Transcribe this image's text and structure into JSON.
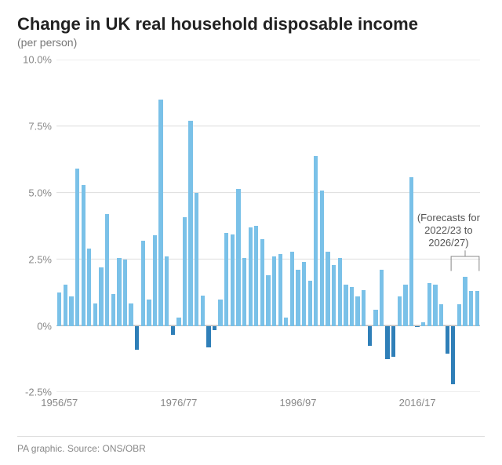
{
  "title": "Change in UK real household disposable income",
  "subtitle": "(per person)",
  "footer": "PA graphic. Source: ONS/OBR",
  "chart": {
    "type": "bar",
    "background_color": "#ffffff",
    "grid_color": "#dddddd",
    "zero_axis_color": "#bbbbbb",
    "y": {
      "min": -2.5,
      "max": 10.0,
      "tick_step": 2.5,
      "suffix": "%",
      "decimals": 1,
      "label_color": "#888888",
      "label_fontsize": 13
    },
    "x": {
      "tick_labels": [
        "1956/57",
        "1976/77",
        "1996/97",
        "2016/17"
      ],
      "tick_indices": [
        0,
        20,
        40,
        60
      ],
      "label_color": "#888888",
      "label_fontsize": 13
    },
    "title_fontsize": 22,
    "title_color": "#222222",
    "subtitle_fontsize": 14,
    "subtitle_color": "#777777",
    "colors": {
      "positive": "#7ac1e8",
      "negative": "#2f7fb8"
    },
    "bar_width_ratio": 0.7,
    "series_start_year": 1956,
    "values": [
      1.25,
      1.55,
      1.1,
      5.9,
      5.3,
      2.9,
      0.85,
      2.2,
      4.2,
      1.2,
      2.55,
      2.5,
      0.85,
      -0.9,
      3.2,
      1.0,
      3.4,
      8.5,
      2.6,
      -0.35,
      0.3,
      4.1,
      7.7,
      5.0,
      1.15,
      -0.8,
      -0.15,
      1.0,
      3.5,
      3.45,
      5.15,
      2.55,
      3.7,
      3.75,
      3.25,
      1.9,
      2.6,
      2.7,
      0.3,
      2.8,
      2.1,
      2.4,
      1.7,
      6.4,
      5.1,
      2.8,
      2.3,
      2.55,
      1.55,
      1.45,
      1.1,
      1.35,
      -0.75,
      0.6,
      2.1,
      -1.25,
      -1.15,
      1.1,
      1.55,
      5.6,
      -0.05,
      0.15,
      1.6,
      1.55,
      0.8,
      -1.05,
      -2.2,
      0.8,
      1.85,
      1.3,
      1.3
    ],
    "forecast_start_index": 66,
    "annotation": {
      "text": "(Forecasts for\n2022/23 to\n2026/27)",
      "color": "#555555",
      "fontsize": 13,
      "target_start_index": 66,
      "target_end_index": 70
    }
  }
}
